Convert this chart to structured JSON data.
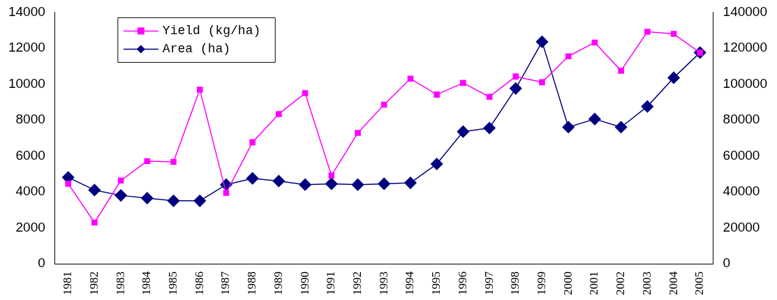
{
  "chart_data": {
    "type": "line",
    "categories": [
      "1981",
      "1982",
      "1983",
      "1984",
      "1985",
      "1986",
      "1987",
      "1988",
      "1989",
      "1990",
      "1991",
      "1992",
      "1993",
      "1994",
      "1995",
      "1996",
      "1997",
      "1998",
      "1999",
      "2000",
      "2001",
      "2002",
      "2003",
      "2004",
      "2005"
    ],
    "series": [
      {
        "name": "Yield (kg/ha)",
        "color": "#ff00ff",
        "marker": "square",
        "values": [
          4450,
          2290,
          4630,
          5710,
          5670,
          9690,
          3940,
          6760,
          8330,
          9490,
          4910,
          7280,
          8850,
          10300,
          9410,
          10060,
          9290,
          10420,
          10100,
          11540,
          12310,
          10740,
          12910,
          12790,
          11750
        ]
      },
      {
        "name": "Area (ha)",
        "color": "#000080",
        "marker": "diamond",
        "axis": "y2",
        "values": [
          48000,
          41000,
          38000,
          36500,
          35000,
          35000,
          44000,
          47500,
          46000,
          44000,
          44500,
          44000,
          44500,
          45000,
          55500,
          73500,
          75500,
          97500,
          123500,
          76000,
          80500,
          76000,
          87500,
          103500,
          117500
        ]
      }
    ],
    "ylim": [
      0,
      14000
    ],
    "yticks": [
      0,
      2000,
      4000,
      6000,
      8000,
      10000,
      12000,
      14000
    ],
    "y2lim": [
      0,
      140000
    ],
    "y2ticks": [
      0,
      20000,
      40000,
      60000,
      80000,
      100000,
      120000,
      140000
    ],
    "legend": "top left",
    "grid": false
  }
}
